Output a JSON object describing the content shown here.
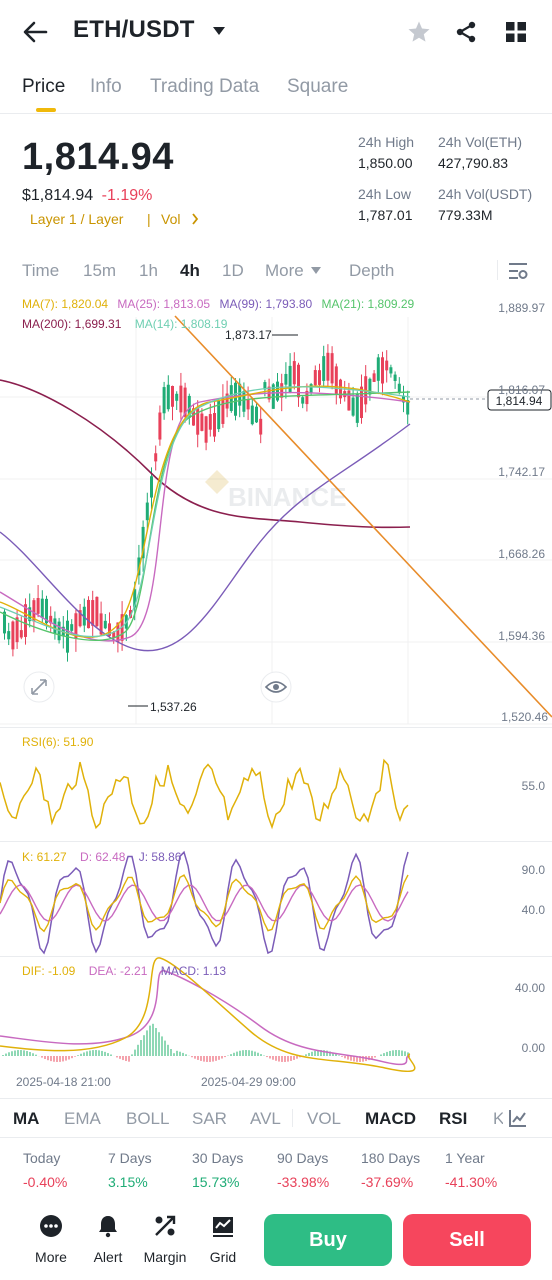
{
  "header": {
    "pair": "ETH/USDT"
  },
  "tabs": [
    {
      "label": "Price"
    },
    {
      "label": "Info"
    },
    {
      "label": "Trading Data"
    },
    {
      "label": "Square"
    }
  ],
  "ticker": {
    "price": "1,814.94",
    "usd": "$1,814.94",
    "change": "-1.19%",
    "tag": "Layer 1 / Layer",
    "vol": "Vol",
    "high_label": "24h High",
    "high": "1,850.00",
    "low_label": "24h Low",
    "low": "1,787.01",
    "vol_eth_label": "24h Vol(ETH)",
    "vol_eth": "427,790.83",
    "vol_usdt_label": "24h Vol(USDT)",
    "vol_usdt": "779.33M"
  },
  "timeframes": [
    {
      "label": "Time"
    },
    {
      "label": "15m"
    },
    {
      "label": "1h"
    },
    {
      "label": "4h"
    },
    {
      "label": "1D"
    },
    {
      "label": "More"
    },
    {
      "label": "Depth"
    }
  ],
  "ma_legend": {
    "ma7": "MA(7): 1,820.04",
    "ma25": "MA(25): 1,813.05",
    "ma99": "MA(99): 1,793.80",
    "ma21": "MA(21): 1,809.29",
    "ma200": "MA(200): 1,699.31",
    "ma14": "MA(14): 1,808.19"
  },
  "main_chart": {
    "y_labels": [
      "1,889.97",
      "1,816.07",
      "1,742.17",
      "1,668.26",
      "1,594.36",
      "1,520.46"
    ],
    "current_price": "1,814.94",
    "high_marker": "1,873.17",
    "low_marker": "1,537.26",
    "watermark": "BINANCE"
  },
  "rsi": {
    "legend": "RSI(6): 51.90",
    "y_label": "55.0"
  },
  "kdj": {
    "k": "K: 61.27",
    "d": "D: 62.48",
    "j": "J: 58.86",
    "y_labels": [
      "90.0",
      "40.0"
    ]
  },
  "macd": {
    "dif": "DIF: -1.09",
    "dea": "DEA: -2.21",
    "macd": "MACD: 1.13",
    "y_labels": [
      "40.00",
      "0.00"
    ]
  },
  "x_labels": [
    "2025-04-18 21:00",
    "2025-04-29 09:00"
  ],
  "indicators": [
    {
      "label": "MA"
    },
    {
      "label": "EMA"
    },
    {
      "label": "BOLL"
    },
    {
      "label": "SAR"
    },
    {
      "label": "AVL"
    },
    {
      "label": "VOL"
    },
    {
      "label": "MACD"
    },
    {
      "label": "RSI"
    },
    {
      "label": "K"
    }
  ],
  "performance": [
    {
      "label": "Today",
      "value": "-0.40%"
    },
    {
      "label": "7 Days",
      "value": "3.15%"
    },
    {
      "label": "30 Days",
      "value": "15.73%"
    },
    {
      "label": "90 Days",
      "value": "-33.98%"
    },
    {
      "label": "180 Days",
      "value": "-37.69%"
    },
    {
      "label": "1 Year",
      "value": "-41.30%"
    }
  ],
  "bottom_nav": [
    {
      "label": "More"
    },
    {
      "label": "Alert"
    },
    {
      "label": "Margin"
    },
    {
      "label": "Grid"
    }
  ],
  "actions": {
    "buy": "Buy",
    "sell": "Sell"
  },
  "colors": {
    "up": "#1fac76",
    "down": "#e8415a",
    "accent": "#f0b90b",
    "buy_bg": "#2ebd85",
    "sell_bg": "#f6465d"
  },
  "icons": [
    "back-arrow-icon",
    "caret-down-icon",
    "star-icon",
    "share-icon",
    "grid-icon",
    "chevron-right-icon",
    "chart-settings-icon",
    "expand-icon",
    "eye-icon",
    "indicator-settings-icon",
    "more-dots-icon",
    "bell-icon",
    "margin-icon",
    "grid-bot-icon"
  ]
}
